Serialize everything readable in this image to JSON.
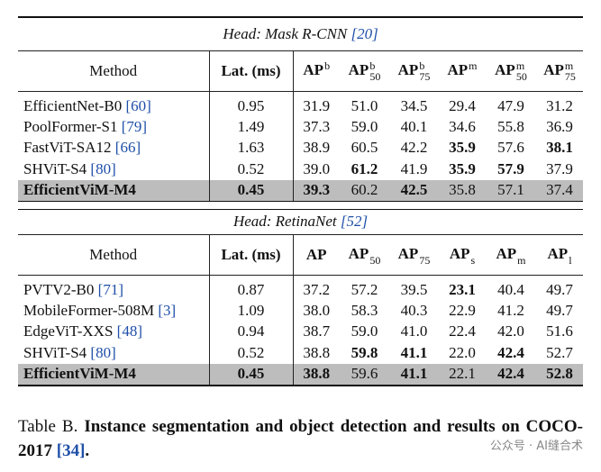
{
  "tables": [
    {
      "head": "Head: Mask R-CNN",
      "head_ref": "[20]",
      "columns": [
        {
          "base": "Method"
        },
        {
          "base": "Lat. (ms)"
        },
        {
          "base": "AP",
          "sup": "b"
        },
        {
          "base": "AP",
          "sup": "b",
          "sub": "50"
        },
        {
          "base": "AP",
          "sup": "b",
          "sub": "75"
        },
        {
          "base": "AP",
          "sup": "m"
        },
        {
          "base": "AP",
          "sup": "m",
          "sub": "50"
        },
        {
          "base": "AP",
          "sup": "m",
          "sub": "75"
        }
      ],
      "rows": [
        {
          "method": "EfficientNet-B0",
          "ref": "[60]",
          "values": [
            "0.95",
            "31.9",
            "51.0",
            "34.5",
            "29.4",
            "47.9",
            "31.2"
          ],
          "bold": []
        },
        {
          "method": "PoolFormer-S1",
          "ref": "[79]",
          "values": [
            "1.49",
            "37.3",
            "59.0",
            "40.1",
            "34.6",
            "55.8",
            "36.9"
          ],
          "bold": []
        },
        {
          "method": "FastViT-SA12",
          "ref": "[66]",
          "values": [
            "1.63",
            "38.9",
            "60.5",
            "42.2",
            "35.9",
            "57.6",
            "38.1"
          ],
          "bold": [
            4,
            6
          ]
        },
        {
          "method": "SHViT-S4",
          "ref": "[80]",
          "values": [
            "0.52",
            "39.0",
            "61.2",
            "41.9",
            "35.9",
            "57.9",
            "37.9"
          ],
          "bold": [
            2,
            4,
            5
          ]
        },
        {
          "method": "EfficientViM-M4",
          "values": [
            "0.45",
            "39.3",
            "60.2",
            "42.5",
            "35.8",
            "57.1",
            "37.4"
          ],
          "bold": [
            0,
            1,
            3
          ],
          "highlight": true
        }
      ]
    },
    {
      "head": "Head: RetinaNet",
      "head_ref": "[52]",
      "columns": [
        {
          "base": "Method"
        },
        {
          "base": "Lat. (ms)"
        },
        {
          "base": "AP"
        },
        {
          "base": "AP",
          "sub": "50"
        },
        {
          "base": "AP",
          "sub": "75"
        },
        {
          "base": "AP",
          "sub": "s"
        },
        {
          "base": "AP",
          "sub": "m"
        },
        {
          "base": "AP",
          "sub": "l"
        }
      ],
      "rows": [
        {
          "method": "PVTV2-B0",
          "ref": "[71]",
          "values": [
            "0.87",
            "37.2",
            "57.2",
            "39.5",
            "23.1",
            "40.4",
            "49.7"
          ],
          "bold": [
            4
          ]
        },
        {
          "method": "MobileFormer-508M",
          "ref": "[3]",
          "values": [
            "1.09",
            "38.0",
            "58.3",
            "40.3",
            "22.9",
            "41.2",
            "49.7"
          ],
          "bold": []
        },
        {
          "method": "EdgeViT-XXS",
          "ref": "[48]",
          "values": [
            "0.94",
            "38.7",
            "59.0",
            "41.0",
            "22.4",
            "42.0",
            "51.6"
          ],
          "bold": []
        },
        {
          "method": "SHViT-S4",
          "ref": "[80]",
          "values": [
            "0.52",
            "38.8",
            "59.8",
            "41.1",
            "22.0",
            "42.4",
            "52.7"
          ],
          "bold": [
            2,
            3,
            5
          ]
        },
        {
          "method": "EfficientViM-M4",
          "values": [
            "0.45",
            "38.8",
            "59.6",
            "41.1",
            "22.1",
            "42.4",
            "52.8"
          ],
          "bold": [
            0,
            1,
            3,
            5,
            6
          ],
          "highlight": true
        }
      ]
    }
  ],
  "caption": {
    "label": "Table B.",
    "text": "Instance segmentation and object detection and results on COCO-2017",
    "ref": "[34]",
    "end": "."
  },
  "watermark": "公众号 · AI缝合术"
}
